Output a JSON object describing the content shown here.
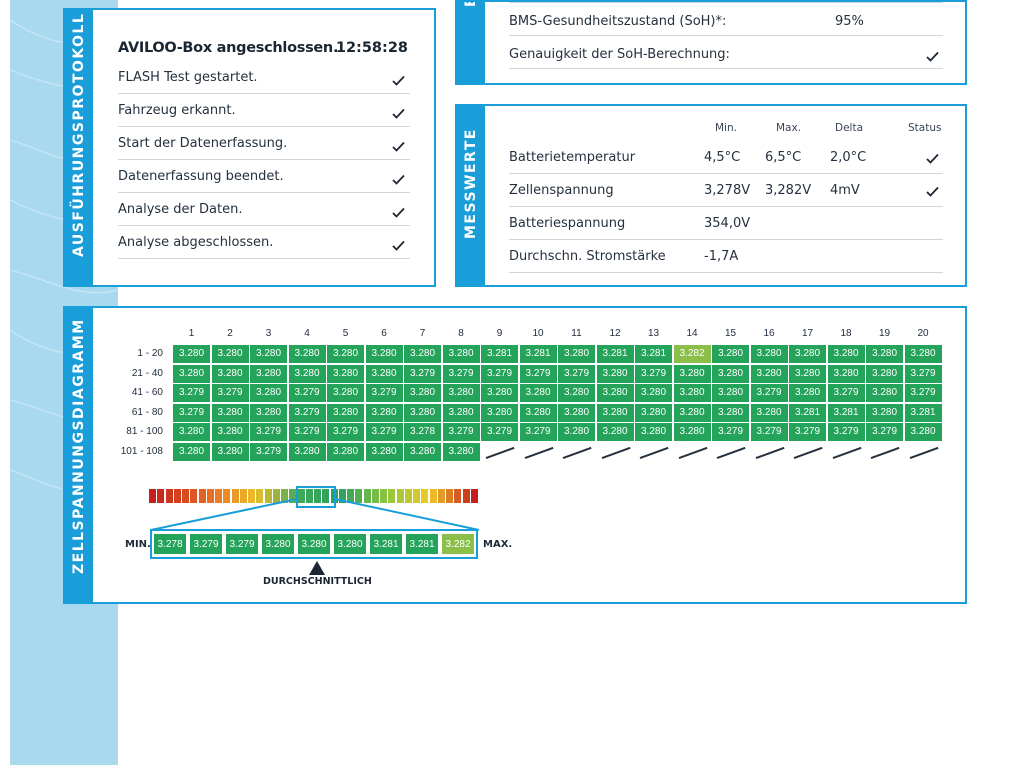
{
  "colors": {
    "accent": "#1a9ed9",
    "cell_green": "#24a35a",
    "cell_light": "#8cbf4a",
    "side_strip": "#a9d9ef"
  },
  "protocol": {
    "title": "AUSFÜHRUNGSPROTOKOLL",
    "header": "AVILOO-Box angeschlossen.",
    "time": "12:58:28",
    "steps": [
      "FLASH Test gestartet.",
      "Fahrzeug erkannt.",
      "Start der Datenerfassung.",
      "Datenerfassung beendet.",
      "Analyse der Daten.",
      "Analyse abgeschlossen."
    ]
  },
  "bms": {
    "title_fragment": "B",
    "soh_label": "BMS-Gesundheitszustand (SoH)*:",
    "soh_value": "95%",
    "accuracy_label": "Genauigkeit der SoH-Berechnung:"
  },
  "measurements": {
    "title": "MESSWERTE",
    "headers": {
      "min": "Min.",
      "max": "Max.",
      "delta": "Delta",
      "status": "Status"
    },
    "rows": [
      {
        "label": "Batterietemperatur",
        "min": "4,5°C",
        "max": "6,5°C",
        "delta": "2,0°C",
        "status": "check-icon"
      },
      {
        "label": "Zellenspannung",
        "min": "3,278V",
        "max": "3,282V",
        "delta": "4mV",
        "status": "check-icon"
      },
      {
        "label": "Batteriespannung",
        "min": "354,0V",
        "max": "",
        "delta": "",
        "status": ""
      },
      {
        "label": "Durchschn. Stromstärke",
        "min": "-1,7A",
        "max": "",
        "delta": "",
        "status": ""
      }
    ]
  },
  "diagram": {
    "title": "ZELLSPANNUNGSDIAGRAMM",
    "columns": [
      "1",
      "2",
      "3",
      "4",
      "5",
      "6",
      "7",
      "8",
      "9",
      "10",
      "11",
      "12",
      "13",
      "14",
      "15",
      "16",
      "17",
      "18",
      "19",
      "20"
    ],
    "rows": [
      {
        "label": "1 - 20",
        "values": [
          "3.280",
          "3.280",
          "3.280",
          "3.280",
          "3.280",
          "3.280",
          "3.280",
          "3.280",
          "3.281",
          "3.281",
          "3.280",
          "3.281",
          "3.281",
          "3.282",
          "3.280",
          "3.280",
          "3.280",
          "3.280",
          "3.280",
          "3.280"
        ]
      },
      {
        "label": "21 - 40",
        "values": [
          "3.280",
          "3.280",
          "3.280",
          "3.280",
          "3.280",
          "3.280",
          "3.279",
          "3.279",
          "3.279",
          "3.279",
          "3.279",
          "3.280",
          "3.279",
          "3.280",
          "3.280",
          "3.280",
          "3.280",
          "3.280",
          "3.280",
          "3.279"
        ]
      },
      {
        "label": "41 - 60",
        "values": [
          "3.279",
          "3.279",
          "3.280",
          "3.279",
          "3.280",
          "3.279",
          "3.280",
          "3.280",
          "3.280",
          "3.280",
          "3.280",
          "3.280",
          "3.280",
          "3.280",
          "3.280",
          "3.279",
          "3.280",
          "3.279",
          "3.280",
          "3.279"
        ]
      },
      {
        "label": "61 - 80",
        "values": [
          "3.279",
          "3.280",
          "3.280",
          "3.279",
          "3.280",
          "3.280",
          "3.280",
          "3.280",
          "3.280",
          "3.280",
          "3.280",
          "3.280",
          "3.280",
          "3.280",
          "3.280",
          "3.280",
          "3.281",
          "3.281",
          "3.280",
          "3.281"
        ]
      },
      {
        "label": "81 - 100",
        "values": [
          "3.280",
          "3.280",
          "3.279",
          "3.279",
          "3.279",
          "3.279",
          "3.278",
          "3.279",
          "3.279",
          "3.279",
          "3.280",
          "3.280",
          "3.280",
          "3.280",
          "3.279",
          "3.279",
          "3.279",
          "3.279",
          "3.279",
          "3.280"
        ]
      },
      {
        "label": "101 - 108",
        "values": [
          "3.280",
          "3.280",
          "3.279",
          "3.280",
          "3.280",
          "3.280",
          "3.280",
          "3.280"
        ]
      }
    ],
    "legend_min_label": "MIN.",
    "legend_max_label": "MAX.",
    "legend_values": [
      "3.278",
      "3.279",
      "3.279",
      "3.280",
      "3.280",
      "3.280",
      "3.281",
      "3.281",
      "3.282"
    ],
    "average_label": "DURCHSCHNITTLICH"
  }
}
